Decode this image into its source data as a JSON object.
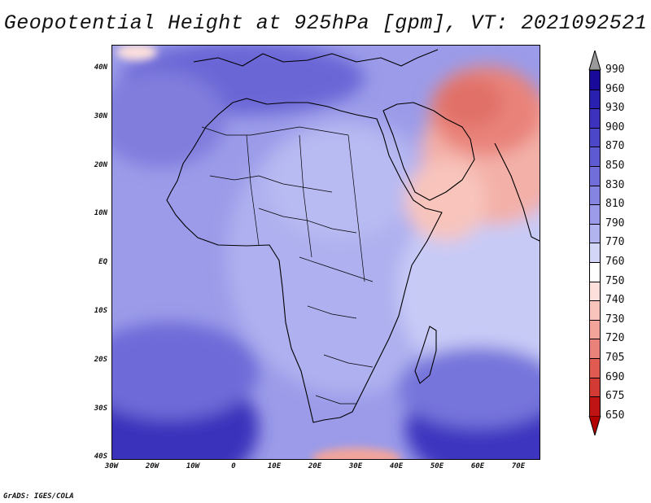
{
  "title": "Geopotential Height at 925hPa [gpm], VT: 2021092521",
  "credit": "GrADS: IGES/COLA",
  "map": {
    "lat_labels": [
      "40N",
      "30N",
      "20N",
      "10N",
      "EQ",
      "10S",
      "20S",
      "30S",
      "40S"
    ],
    "lon_labels": [
      "30W",
      "20W",
      "10W",
      "0",
      "10E",
      "20E",
      "30E",
      "40E",
      "50E",
      "60E",
      "70E"
    ],
    "lon_range": [
      -30,
      75
    ],
    "lat_range": [
      -40,
      45
    ]
  },
  "colorbar": {
    "labels": [
      "990",
      "960",
      "930",
      "900",
      "870",
      "850",
      "830",
      "810",
      "790",
      "770",
      "760",
      "750",
      "740",
      "730",
      "720",
      "705",
      "690",
      "675",
      "650"
    ],
    "colors": [
      "#9a9a9a",
      "#1a0a9a",
      "#2a20b0",
      "#3c32bd",
      "#4c46c8",
      "#5e5ad1",
      "#716ed9",
      "#8584e1",
      "#9b9be9",
      "#b2b4f0",
      "#d4d6f8",
      "#ffffff",
      "#fde0dc",
      "#f8c4bc",
      "#f2a49b",
      "#e9837a",
      "#e05a52",
      "#d33a34",
      "#c01414",
      "#b20000"
    ]
  }
}
